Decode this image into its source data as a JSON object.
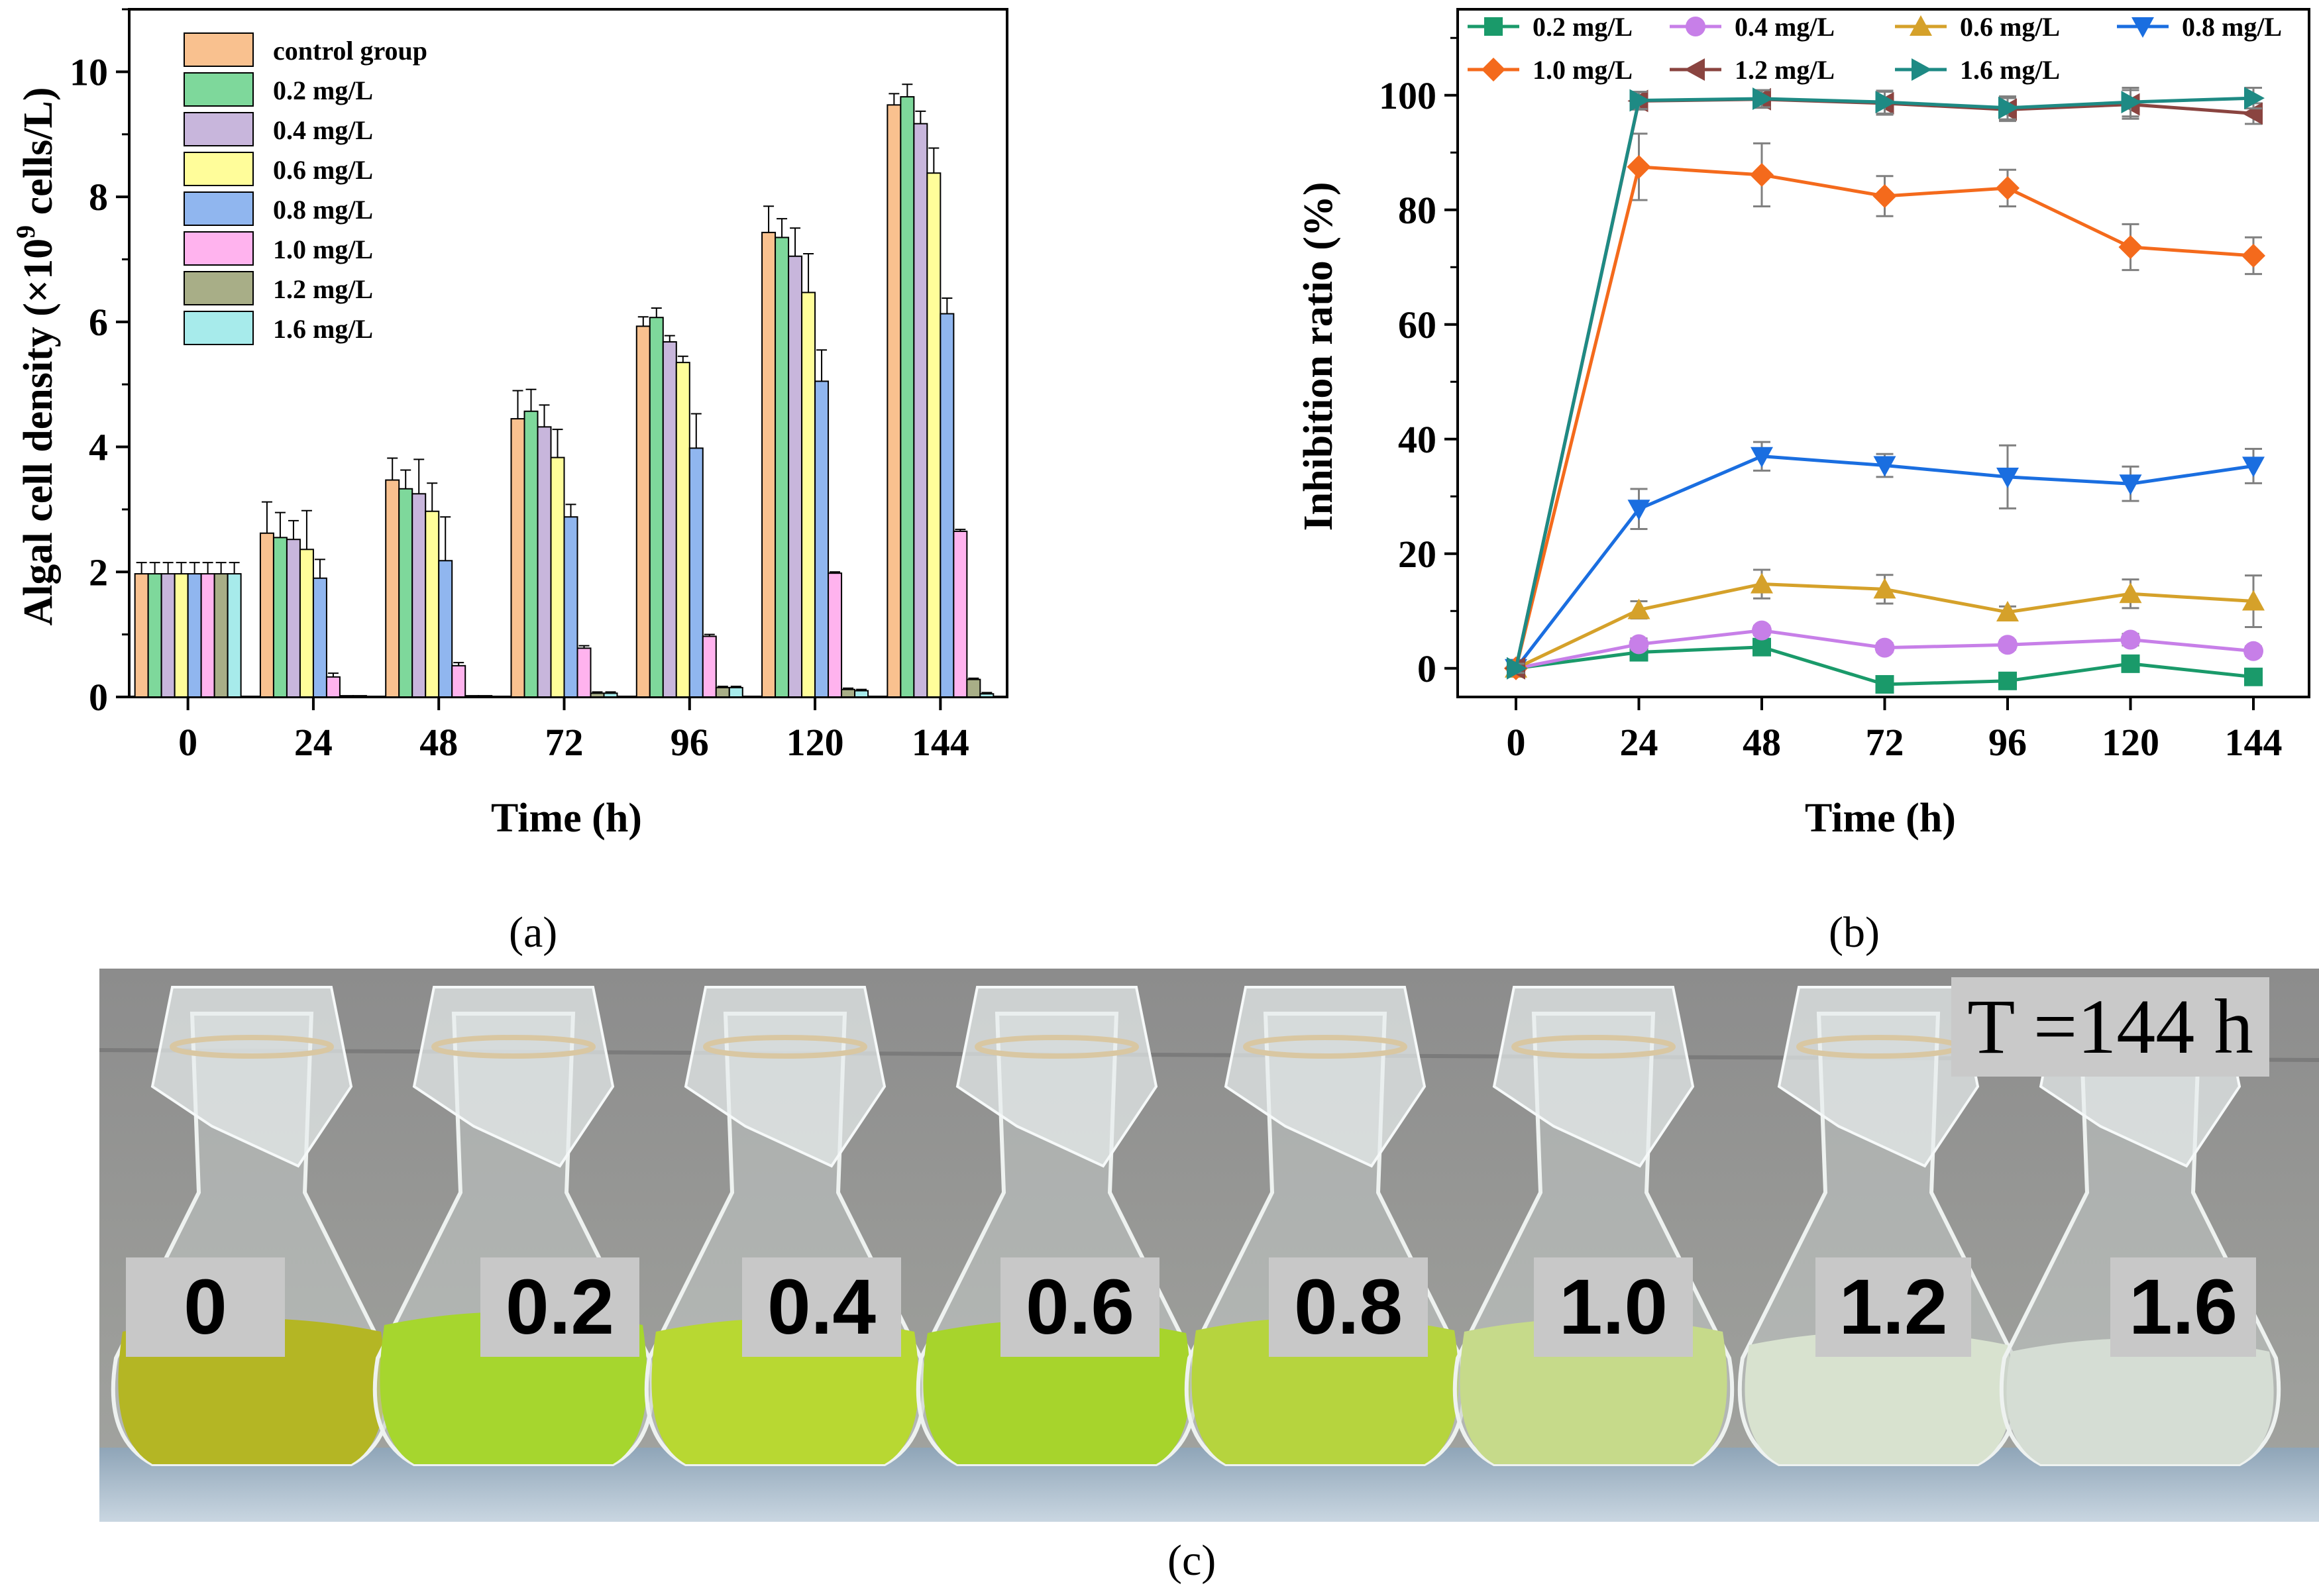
{
  "chart_data": [
    {
      "type": "bar",
      "panel": "(a)",
      "xlabel": "Time (h)",
      "ylabel_main": "Algal cell density (×10",
      "ylabel_sup": "9",
      "ylabel_end": " cells/L)",
      "ylim": [
        0,
        11
      ],
      "yticks": [
        "0",
        "2",
        "4",
        "6",
        "8",
        "10"
      ],
      "categories": [
        "0",
        "24",
        "48",
        "72",
        "96",
        "120",
        "144"
      ],
      "legend_position": "top-left",
      "series": [
        {
          "name": "control group",
          "color": "#f9c18f",
          "values": [
            1.97,
            2.62,
            3.47,
            4.45,
            5.93,
            7.43,
            9.47
          ],
          "errors": [
            0.18,
            0.5,
            0.35,
            0.45,
            0.15,
            0.42,
            0.18
          ]
        },
        {
          "name": "0.2 mg/L",
          "color": "#7ed89b",
          "values": [
            1.97,
            2.55,
            3.33,
            4.57,
            6.07,
            7.35,
            9.6
          ],
          "errors": [
            0.18,
            0.4,
            0.3,
            0.35,
            0.15,
            0.3,
            0.2
          ]
        },
        {
          "name": "0.4 mg/L",
          "color": "#c8b6dc",
          "values": [
            1.97,
            2.52,
            3.25,
            4.32,
            5.68,
            7.05,
            9.17
          ],
          "errors": [
            0.18,
            0.3,
            0.55,
            0.35,
            0.1,
            0.45,
            0.2
          ]
        },
        {
          "name": "0.6 mg/L",
          "color": "#fffd9a",
          "values": [
            1.97,
            2.36,
            2.97,
            3.83,
            5.35,
            6.47,
            8.38
          ],
          "errors": [
            0.18,
            0.62,
            0.45,
            0.45,
            0.1,
            0.62,
            0.4
          ]
        },
        {
          "name": "0.8 mg/L",
          "color": "#90b6ef",
          "values": [
            1.97,
            1.9,
            2.18,
            2.88,
            3.98,
            5.05,
            6.13
          ],
          "errors": [
            0.18,
            0.3,
            0.7,
            0.2,
            0.55,
            0.5,
            0.25
          ]
        },
        {
          "name": "1.0 mg/L",
          "color": "#ffb3ee",
          "values": [
            1.97,
            0.32,
            0.5,
            0.78,
            0.97,
            1.98,
            2.65
          ],
          "errors": [
            0.18,
            0.06,
            0.05,
            0.04,
            0.03,
            0.02,
            0.03
          ]
        },
        {
          "name": "1.2 mg/L",
          "color": "#a8ae87",
          "values": [
            1.97,
            0.02,
            0.02,
            0.06,
            0.15,
            0.12,
            0.28
          ],
          "errors": [
            0.18,
            0.0,
            0.0,
            0.02,
            0.02,
            0.02,
            0.02
          ]
        },
        {
          "name": "1.6 mg/L",
          "color": "#a7ebeb",
          "values": [
            1.97,
            0.02,
            0.02,
            0.06,
            0.15,
            0.1,
            0.05
          ],
          "errors": [
            0.18,
            0.0,
            0.0,
            0.02,
            0.02,
            0.02,
            0.02
          ]
        }
      ]
    },
    {
      "type": "line",
      "panel": "(b)",
      "xlabel": "Time (h)",
      "ylabel": "Inhibition ratio (%)",
      "ylim": [
        -5,
        115
      ],
      "yticks": [
        "0",
        "20",
        "40",
        "60",
        "80",
        "100"
      ],
      "x": [
        "0",
        "24",
        "48",
        "72",
        "96",
        "120",
        "144"
      ],
      "legend_position": "top",
      "series": [
        {
          "name": "0.2 mg/L",
          "color": "#1a9a6a",
          "marker": "square",
          "values": [
            0,
            2.8,
            3.7,
            -2.8,
            -2.2,
            0.8,
            -1.5
          ],
          "errors": [
            0.8,
            0.8,
            0.8,
            0.8,
            0.8,
            0.8,
            0.8
          ]
        },
        {
          "name": "0.4 mg/L",
          "color": "#c77fe8",
          "marker": "circle",
          "values": [
            0,
            4.2,
            6.6,
            3.6,
            4.1,
            5.0,
            3.0
          ],
          "errors": [
            0.8,
            1.0,
            0.8,
            0.8,
            0.8,
            1.0,
            0.8
          ]
        },
        {
          "name": "0.6 mg/L",
          "color": "#d5a12a",
          "marker": "triangle-up",
          "values": [
            0,
            10.2,
            14.7,
            13.8,
            9.8,
            13.0,
            11.7
          ],
          "errors": [
            0.8,
            1.5,
            2.5,
            2.5,
            1.0,
            2.5,
            4.5
          ]
        },
        {
          "name": "0.8 mg/L",
          "color": "#1a6ee0",
          "marker": "triangle-down",
          "values": [
            0,
            27.8,
            37.0,
            35.4,
            33.4,
            32.2,
            35.3
          ],
          "errors": [
            0.8,
            3.5,
            2.5,
            2.0,
            5.5,
            3.0,
            3.0
          ]
        },
        {
          "name": "1.0 mg/L",
          "color": "#f46a1c",
          "marker": "diamond",
          "values": [
            0,
            87.5,
            86.1,
            82.4,
            83.8,
            73.5,
            72.0
          ],
          "errors": [
            0.8,
            5.8,
            5.5,
            3.5,
            3.2,
            4.0,
            3.2
          ]
        },
        {
          "name": "1.2 mg/L",
          "color": "#8a4440",
          "marker": "triangle-left",
          "values": [
            0,
            99.0,
            99.3,
            98.6,
            97.5,
            98.4,
            96.8
          ],
          "errors": [
            0.8,
            1.5,
            1.5,
            2.0,
            2.0,
            2.5,
            1.8
          ]
        },
        {
          "name": "1.6 mg/L",
          "color": "#1e8a84",
          "marker": "triangle-right",
          "values": [
            0,
            99.1,
            99.4,
            98.8,
            97.8,
            98.8,
            99.5
          ],
          "errors": [
            0.8,
            1.5,
            1.5,
            2.0,
            2.0,
            2.5,
            1.8
          ]
        }
      ]
    }
  ],
  "captions": {
    "a": "(a)",
    "b": "(b)",
    "c": "(c)"
  },
  "photo": {
    "time_label": "T =144 h",
    "flask_labels": [
      "0",
      "0.2",
      "0.4",
      "0.6",
      "0.8",
      "1.0",
      "1.2",
      "1.6"
    ]
  }
}
